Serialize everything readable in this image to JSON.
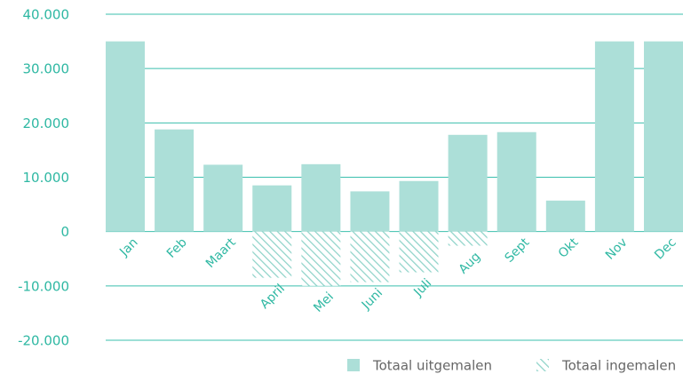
{
  "chart_data": {
    "type": "bar",
    "categories": [
      "Jan",
      "Feb",
      "Maart",
      "April",
      "Mei",
      "Juni",
      "Juli",
      "Aug",
      "Sept",
      "Okt",
      "Nov",
      "Dec"
    ],
    "series": [
      {
        "name": "Totaal uitgemalen",
        "color": "#acdfd8",
        "values": [
          35000,
          18800,
          12300,
          8500,
          12400,
          7400,
          9300,
          17800,
          18300,
          5700,
          35000,
          35000
        ]
      },
      {
        "name": "Totaal ingemalen",
        "color": "#acdfd8",
        "hatch": true,
        "values": [
          0,
          0,
          0,
          -8500,
          -10000,
          -9300,
          -7500,
          -2600,
          0,
          0,
          0,
          0
        ]
      }
    ],
    "ylim": [
      -20000,
      40000
    ],
    "yticks": [
      {
        "value": -20000,
        "label": "-20.000"
      },
      {
        "value": -10000,
        "label": "-10.000"
      },
      0,
      {
        "value": 10000,
        "label": "10.000"
      },
      {
        "value": 20000,
        "label": "20.000"
      },
      {
        "value": 30000,
        "label": "30.000"
      },
      {
        "value": 40000,
        "label": "40.000"
      }
    ],
    "grid": true
  }
}
